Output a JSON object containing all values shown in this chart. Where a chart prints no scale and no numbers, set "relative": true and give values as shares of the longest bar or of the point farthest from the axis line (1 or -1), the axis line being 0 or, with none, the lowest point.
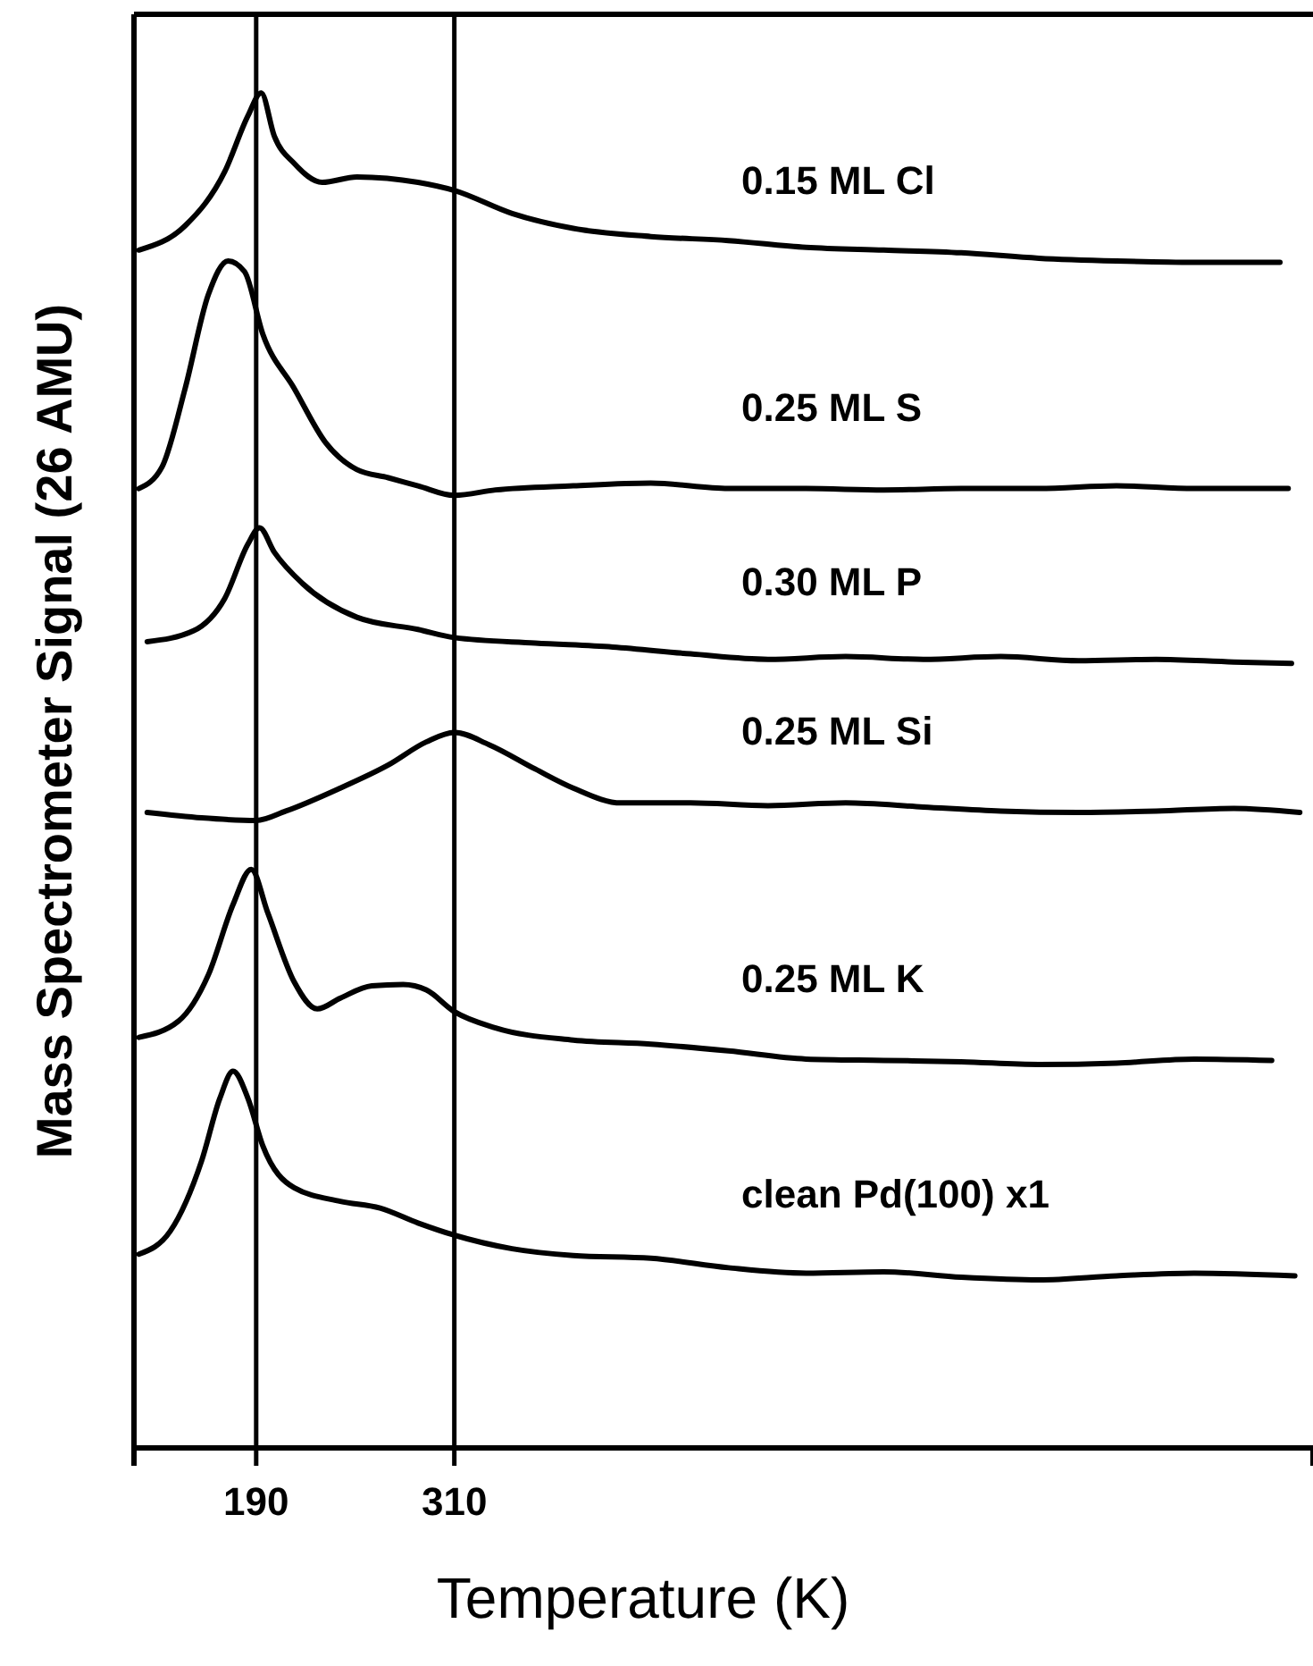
{
  "chart_data": {
    "type": "line",
    "relative": true,
    "xlabel": "Temperature (K)",
    "ylabel": "Mass Spectrometer Signal (26 AMU)",
    "xlim": [
      116,
      830
    ],
    "xticks": [
      190,
      310
    ],
    "line_style": "solid",
    "ref_lines": [
      {
        "axis": "x",
        "value": 190,
        "color": "#000000"
      },
      {
        "axis": "x",
        "value": 310,
        "color": "#000000"
      }
    ],
    "series": [
      {
        "name": "0.15 ML Cl",
        "color": "#000000",
        "x": [
          119,
          147,
          171,
          185,
          193,
          201,
          213,
          230,
          251,
          288,
          310,
          345,
          382,
          429,
          476,
          523,
          570,
          617,
          664,
          711,
          758,
          810
        ],
        "values": [
          0.884,
          0.902,
          0.942,
          0.983,
          1.0,
          0.968,
          0.948,
          0.934,
          0.938,
          0.934,
          0.928,
          0.911,
          0.9,
          0.894,
          0.891,
          0.886,
          0.884,
          0.882,
          0.878,
          0.876,
          0.875,
          0.875
        ]
      },
      {
        "name": "0.25 ML S",
        "color": "#000000",
        "x": [
          119,
          133,
          147,
          161,
          173,
          183,
          194,
          213,
          232,
          251,
          270,
          288,
          310,
          335,
          382,
          429,
          476,
          523,
          570,
          617,
          664,
          711,
          758,
          815
        ],
        "values": [
          0.708,
          0.724,
          0.782,
          0.851,
          0.876,
          0.868,
          0.822,
          0.782,
          0.742,
          0.722,
          0.716,
          0.71,
          0.703,
          0.707,
          0.71,
          0.712,
          0.708,
          0.708,
          0.707,
          0.708,
          0.708,
          0.71,
          0.708,
          0.708
        ]
      },
      {
        "name": "0.30 ML P",
        "color": "#000000",
        "x": [
          124,
          152,
          171,
          185,
          192,
          201,
          218,
          251,
          288,
          310,
          359,
          406,
          453,
          500,
          547,
          594,
          641,
          688,
          735,
          782,
          817
        ],
        "values": [
          0.595,
          0.603,
          0.627,
          0.667,
          0.679,
          0.661,
          0.638,
          0.613,
          0.604,
          0.598,
          0.594,
          0.591,
          0.586,
          0.582,
          0.584,
          0.582,
          0.584,
          0.581,
          0.582,
          0.58,
          0.579
        ]
      },
      {
        "name": "0.25 ML Si",
        "color": "#000000",
        "x": [
          124,
          157,
          190,
          208,
          241,
          270,
          293,
          310,
          331,
          359,
          382,
          411,
          453,
          500,
          547,
          594,
          641,
          688,
          735,
          782,
          822
        ],
        "values": [
          0.469,
          0.465,
          0.463,
          0.47,
          0.487,
          0.504,
          0.521,
          0.528,
          0.519,
          0.501,
          0.487,
          0.476,
          0.476,
          0.474,
          0.476,
          0.473,
          0.47,
          0.469,
          0.47,
          0.472,
          0.469
        ]
      },
      {
        "name": "0.25 ML K",
        "color": "#000000",
        "x": [
          119,
          143,
          161,
          176,
          187,
          197,
          213,
          227,
          241,
          260,
          279,
          293,
          310,
          335,
          382,
          429,
          476,
          523,
          570,
          617,
          664,
          711,
          758,
          805
        ],
        "values": [
          0.303,
          0.315,
          0.349,
          0.401,
          0.427,
          0.395,
          0.344,
          0.324,
          0.332,
          0.341,
          0.342,
          0.338,
          0.322,
          0.31,
          0.301,
          0.298,
          0.293,
          0.287,
          0.286,
          0.285,
          0.283,
          0.284,
          0.287,
          0.286
        ]
      },
      {
        "name": "clean Pd(100) x1",
        "color": "#000000",
        "x": [
          119,
          138,
          157,
          168,
          176,
          185,
          194,
          213,
          241,
          265,
          288,
          310,
          345,
          382,
          429,
          476,
          523,
          570,
          617,
          664,
          711,
          758,
          819
        ],
        "values": [
          0.143,
          0.16,
          0.212,
          0.258,
          0.278,
          0.258,
          0.223,
          0.192,
          0.182,
          0.177,
          0.166,
          0.157,
          0.147,
          0.142,
          0.14,
          0.133,
          0.129,
          0.13,
          0.126,
          0.124,
          0.127,
          0.129,
          0.127
        ]
      }
    ]
  }
}
